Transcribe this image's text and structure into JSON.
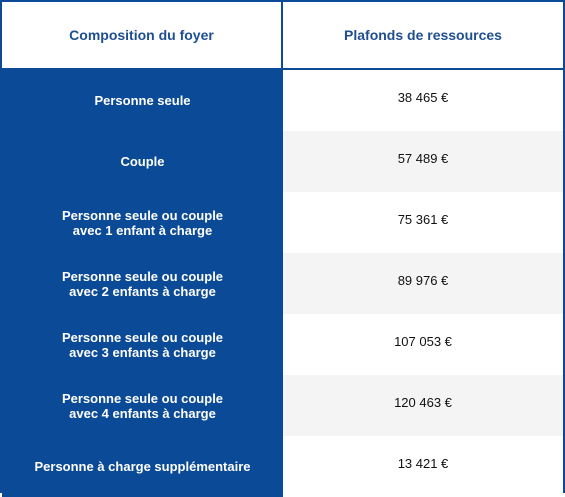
{
  "table": {
    "headers": {
      "left": "Composition du foyer",
      "right": "Plafonds de ressources"
    },
    "rows": [
      {
        "label": "Personne seule",
        "value": "38 465 €"
      },
      {
        "label": "Couple",
        "value": "57 489 €"
      },
      {
        "label": "Personne seule ou couple\navec 1 enfant à charge",
        "value": "75 361 €"
      },
      {
        "label": "Personne seule ou couple\navec 2 enfants à charge",
        "value": "89 976 €"
      },
      {
        "label": "Personne seule ou couple\navec 3 enfants à charge",
        "value": "107 053 €"
      },
      {
        "label": "Personne seule ou couple\navec 4 enfants à charge",
        "value": "120 463 €"
      },
      {
        "label": "Personne à charge supplémentaire",
        "value": "13 421 €"
      }
    ],
    "colors": {
      "primary_blue": "#0b4a96",
      "header_text": "#1f4f91",
      "border": "#0c4a97",
      "alt_row_bg": "#f4f4f4"
    }
  }
}
